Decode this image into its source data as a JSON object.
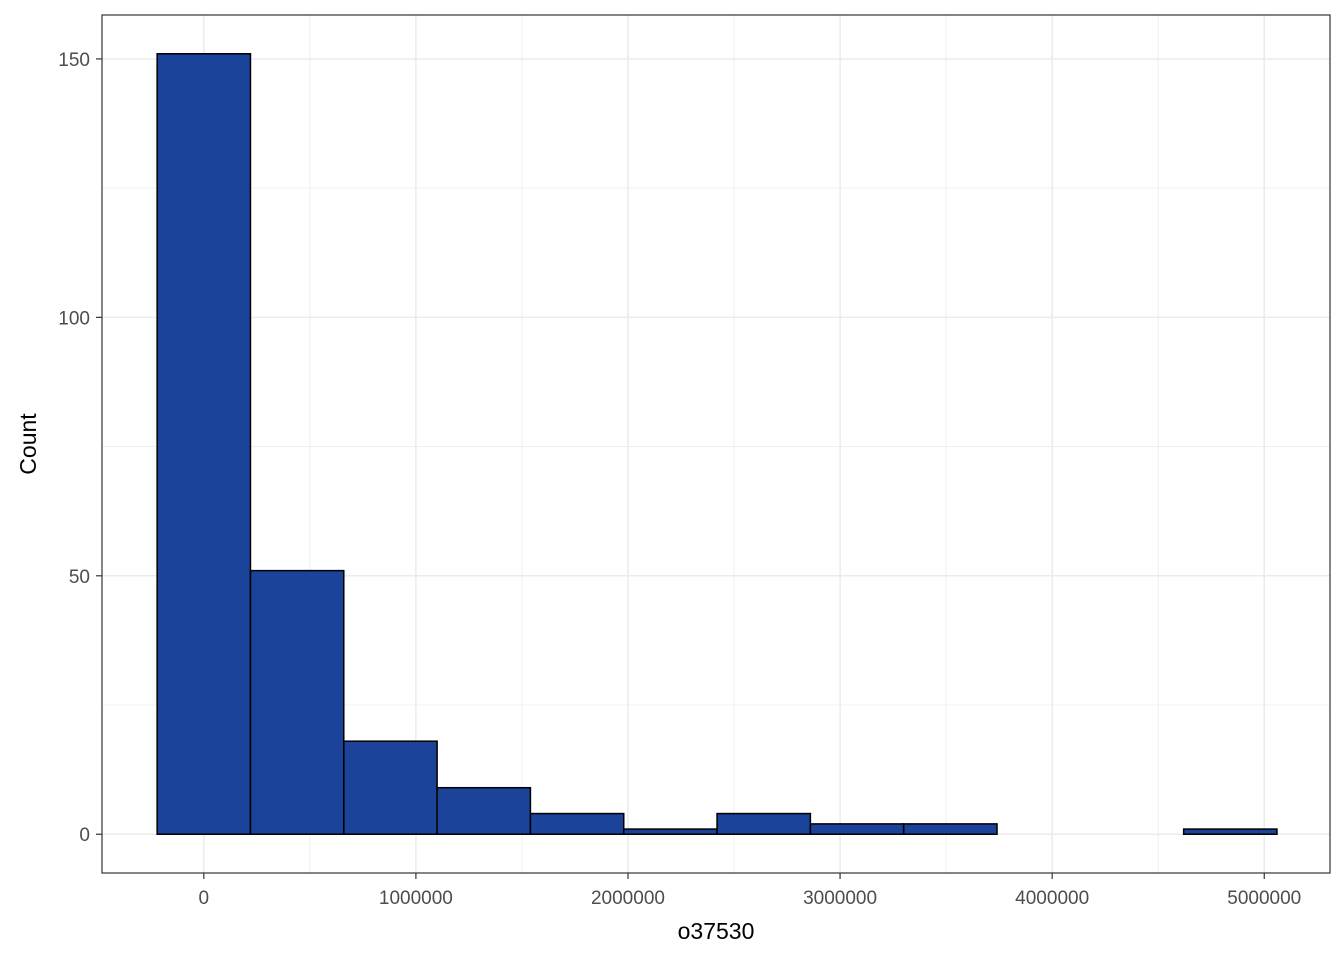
{
  "chart_data": {
    "type": "bar",
    "subtype": "histogram",
    "xlabel": "o37530",
    "ylabel": "Count",
    "xlim": [
      -480000,
      5310000
    ],
    "ylim": [
      -7.5,
      158.5
    ],
    "x_ticks": [
      0,
      1000000,
      2000000,
      3000000,
      4000000,
      5000000
    ],
    "x_tick_labels": [
      "0",
      "1000000",
      "2000000",
      "3000000",
      "4000000",
      "5000000"
    ],
    "y_ticks": [
      0,
      50,
      100,
      150
    ],
    "y_tick_labels": [
      "0",
      "50",
      "100",
      "150"
    ],
    "bin_width": 440000,
    "bins": [
      {
        "x0": -220000,
        "x1": 220000,
        "count": 151
      },
      {
        "x0": 220000,
        "x1": 660000,
        "count": 51
      },
      {
        "x0": 660000,
        "x1": 1100000,
        "count": 18
      },
      {
        "x0": 1100000,
        "x1": 1540000,
        "count": 9
      },
      {
        "x0": 1540000,
        "x1": 1980000,
        "count": 4
      },
      {
        "x0": 1980000,
        "x1": 2420000,
        "count": 1
      },
      {
        "x0": 2420000,
        "x1": 2860000,
        "count": 4
      },
      {
        "x0": 2860000,
        "x1": 3300000,
        "count": 2
      },
      {
        "x0": 3300000,
        "x1": 3740000,
        "count": 2
      },
      {
        "x0": 3740000,
        "x1": 4180000,
        "count": 0
      },
      {
        "x0": 4180000,
        "x1": 4620000,
        "count": 0
      },
      {
        "x0": 4620000,
        "x1": 5060000,
        "count": 1
      }
    ],
    "grid": true,
    "legend": "none",
    "colors": {
      "bar_fill": "#1A4399",
      "bar_stroke": "#000000",
      "grid": "#EBEBEB",
      "panel_border": "#333333",
      "tick_text": "#4D4D4D",
      "title_text": "#000000"
    }
  }
}
